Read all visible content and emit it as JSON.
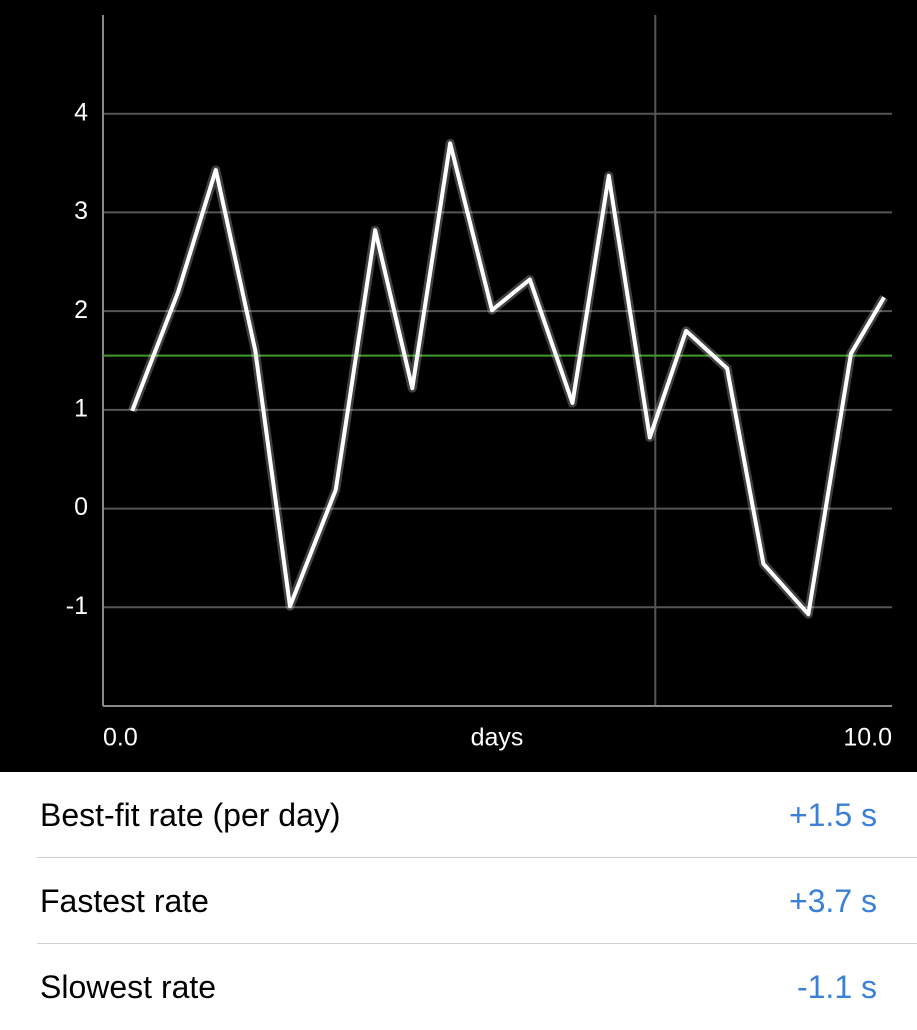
{
  "chart_data": {
    "type": "line",
    "x_label": "days",
    "x": [
      0.37,
      0.95,
      1.43,
      1.93,
      2.37,
      2.95,
      3.45,
      3.92,
      4.4,
      4.93,
      5.41,
      5.95,
      6.41,
      6.93,
      7.39,
      7.91,
      8.37,
      8.94,
      9.48,
      9.9
    ],
    "series": [
      {
        "color": "#ffffff",
        "values": [
          0.99,
          2.19,
          3.43,
          1.6,
          -0.99,
          0.19,
          2.82,
          1.22,
          3.7,
          2.01,
          2.32,
          1.07,
          3.37,
          0.72,
          1.8,
          1.42,
          -0.56,
          -1.07,
          1.57,
          2.14
        ]
      }
    ],
    "fit_line": 1.55,
    "fit_color": "#3f9b2a",
    "vertical_lines": [
      7
    ],
    "xlim": [
      0,
      10
    ],
    "xticks": [
      {
        "value": 0,
        "label": "0.0"
      },
      {
        "value": 10,
        "label": "10.0"
      }
    ],
    "ylim": [
      -2,
      5
    ],
    "yticks": [
      -1,
      0,
      1,
      2,
      3,
      4
    ],
    "grid": true
  },
  "table": {
    "rows": [
      [
        "Best-fit rate (per day)",
        "+1.5 s"
      ],
      [
        "Fastest rate",
        "+3.7 s"
      ],
      [
        "Slowest rate",
        "-1.1 s"
      ]
    ]
  }
}
